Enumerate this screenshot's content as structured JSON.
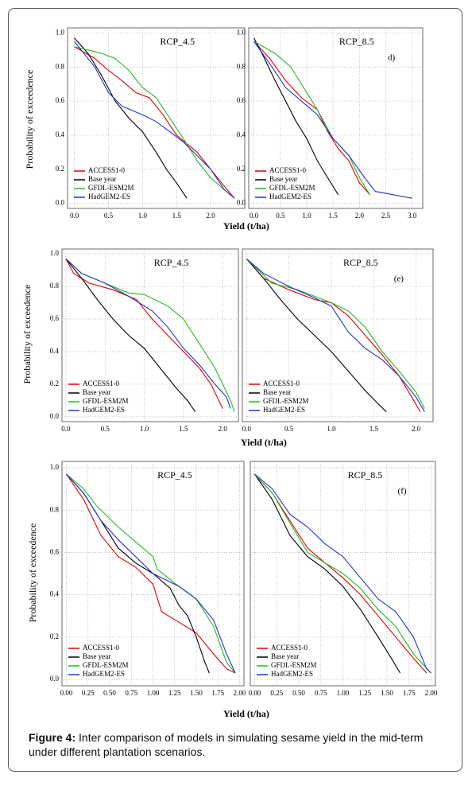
{
  "chart_data": [
    {
      "type": "line",
      "title": "RCP_4.5",
      "ylabel": "Probability of exceedence",
      "xlabel": "Yield (t/ha)",
      "legend": "lower left",
      "grid": true,
      "xlim": [
        -0.1,
        2.5
      ],
      "ylim": [
        -0.03,
        1.03
      ],
      "xticks": [
        {
          "value": 0,
          "label": "0.0"
        },
        0.5,
        {
          "value": 1,
          "label": "1.0"
        },
        1.5,
        {
          "value": 2,
          "label": "2.0"
        }
      ],
      "yticks": [
        {
          "value": 0,
          "label": "0.0"
        },
        0.2,
        0.4,
        0.6,
        0.8,
        {
          "value": 1,
          "label": "1.0"
        }
      ],
      "series": [
        {
          "name": "ACCESS1-0",
          "color": "#e00000",
          "x": [
            0,
            0.3,
            0.5,
            0.7,
            0.9,
            1.1,
            1.3,
            1.5,
            1.8,
            2.0,
            2.2,
            2.35
          ],
          "values": [
            0.92,
            0.85,
            0.78,
            0.72,
            0.65,
            0.62,
            0.52,
            0.4,
            0.3,
            0.2,
            0.1,
            0.03
          ]
        },
        {
          "name": "Base year",
          "color": "#000000",
          "x": [
            0,
            0.2,
            0.4,
            0.6,
            0.8,
            1.0,
            1.2,
            1.35,
            1.5,
            1.65
          ],
          "values": [
            0.97,
            0.88,
            0.75,
            0.6,
            0.5,
            0.42,
            0.3,
            0.2,
            0.12,
            0.03
          ]
        },
        {
          "name": "GFDL-ESM2M",
          "color": "#22bb22",
          "x": [
            0,
            0.4,
            0.6,
            0.8,
            1.0,
            1.2,
            1.4,
            1.6,
            1.8,
            2.0,
            2.2,
            2.35
          ],
          "values": [
            0.92,
            0.88,
            0.85,
            0.78,
            0.68,
            0.62,
            0.5,
            0.38,
            0.25,
            0.15,
            0.08,
            0.03
          ]
        },
        {
          "name": "HadGEM2-ES",
          "color": "#2233cc",
          "x": [
            0,
            0.3,
            0.5,
            0.7,
            1.0,
            1.2,
            1.4,
            1.6,
            1.8,
            2.0,
            2.2,
            2.35
          ],
          "values": [
            0.95,
            0.8,
            0.65,
            0.57,
            0.52,
            0.48,
            0.42,
            0.36,
            0.28,
            0.2,
            0.08,
            0.03
          ]
        }
      ]
    },
    {
      "type": "line",
      "title": "RCP_8.5",
      "annotation": "d)",
      "legend": "lower left",
      "grid": true,
      "xlim": [
        -0.1,
        3.2
      ],
      "ylim": [
        -0.03,
        1.03
      ],
      "xticks": [
        {
          "value": 0,
          "label": "0.0"
        },
        0.5,
        {
          "value": 1,
          "label": "1.0"
        },
        1.5,
        {
          "value": 2,
          "label": "2.0"
        },
        2.5,
        {
          "value": 3,
          "label": "3.0"
        }
      ],
      "yticks": [
        {
          "value": 0,
          "label": "0.0"
        },
        0.2,
        0.4,
        0.6,
        0.8,
        {
          "value": 1,
          "label": "1.0"
        }
      ],
      "series": [
        {
          "name": "ACCESS1-0",
          "color": "#e00000",
          "x": [
            0,
            0.3,
            0.6,
            0.9,
            1.2,
            1.4,
            1.6,
            1.8,
            2.0,
            2.2
          ],
          "values": [
            0.95,
            0.85,
            0.72,
            0.62,
            0.55,
            0.42,
            0.32,
            0.25,
            0.12,
            0.05
          ]
        },
        {
          "name": "Base year",
          "color": "#000000",
          "x": [
            0,
            0.2,
            0.4,
            0.6,
            0.8,
            1.0,
            1.2,
            1.4,
            1.6
          ],
          "values": [
            0.97,
            0.85,
            0.72,
            0.6,
            0.48,
            0.38,
            0.25,
            0.15,
            0.05
          ]
        },
        {
          "name": "GFDL-ESM2M",
          "color": "#22bb22",
          "x": [
            0,
            0.4,
            0.7,
            1.0,
            1.2,
            1.5,
            1.8,
            2.0,
            2.2
          ],
          "values": [
            0.95,
            0.88,
            0.8,
            0.65,
            0.55,
            0.38,
            0.28,
            0.15,
            0.05
          ]
        },
        {
          "name": "HadGEM2-ES",
          "color": "#2233cc",
          "x": [
            0,
            0.3,
            0.6,
            0.9,
            1.2,
            1.5,
            1.8,
            2.1,
            2.3,
            3.0
          ],
          "values": [
            0.95,
            0.82,
            0.68,
            0.6,
            0.52,
            0.38,
            0.28,
            0.15,
            0.07,
            0.03
          ]
        }
      ]
    },
    {
      "type": "line",
      "title": "RCP_4.5",
      "ylabel": "Probability of exceedence",
      "xlabel": "Yield (t/ha)",
      "legend": "lower left",
      "grid": true,
      "xlim": [
        -0.05,
        2.2
      ],
      "ylim": [
        -0.03,
        1.03
      ],
      "xticks": [
        {
          "value": 0,
          "label": "0.0"
        },
        0.5,
        {
          "value": 1,
          "label": "1.0"
        },
        1.5,
        {
          "value": 2,
          "label": "2.0"
        }
      ],
      "yticks": [
        {
          "value": 0,
          "label": "0.0"
        },
        0.2,
        0.4,
        0.6,
        0.8,
        {
          "value": 1,
          "label": "1.0"
        }
      ],
      "series": [
        {
          "name": "ACCESS1-0",
          "color": "#e00000",
          "x": [
            0,
            0.1,
            0.3,
            0.6,
            0.9,
            1.1,
            1.3,
            1.5,
            1.7,
            1.85,
            1.95,
            2.0
          ],
          "values": [
            0.97,
            0.88,
            0.82,
            0.78,
            0.72,
            0.6,
            0.5,
            0.4,
            0.3,
            0.2,
            0.1,
            0.05
          ]
        },
        {
          "name": "Base year",
          "color": "#000000",
          "x": [
            0,
            0.2,
            0.4,
            0.6,
            0.8,
            1.0,
            1.2,
            1.4,
            1.55,
            1.65
          ],
          "values": [
            0.97,
            0.85,
            0.72,
            0.6,
            0.5,
            0.42,
            0.3,
            0.18,
            0.1,
            0.03
          ]
        },
        {
          "name": "GFDL-ESM2M",
          "color": "#22bb22",
          "x": [
            0,
            0.2,
            0.5,
            0.8,
            1.0,
            1.3,
            1.5,
            1.7,
            1.9,
            2.0,
            2.1,
            2.15
          ],
          "values": [
            0.97,
            0.88,
            0.82,
            0.76,
            0.75,
            0.68,
            0.6,
            0.45,
            0.3,
            0.2,
            0.1,
            0.03
          ]
        },
        {
          "name": "HadGEM2-ES",
          "color": "#2233cc",
          "x": [
            0,
            0.2,
            0.5,
            0.8,
            1.1,
            1.3,
            1.5,
            1.7,
            1.9,
            2.05,
            2.1
          ],
          "values": [
            0.97,
            0.88,
            0.82,
            0.74,
            0.65,
            0.55,
            0.42,
            0.32,
            0.2,
            0.12,
            0.05
          ]
        }
      ]
    },
    {
      "type": "line",
      "title": "RCP_8.5",
      "annotation": "(e)",
      "legend": "lower left",
      "grid": true,
      "xlim": [
        -0.05,
        2.2
      ],
      "ylim": [
        -0.03,
        1.03
      ],
      "xticks": [
        {
          "value": 0,
          "label": "0.0"
        },
        0.5,
        {
          "value": 1,
          "label": "1.0"
        },
        1.5,
        {
          "value": 2,
          "label": "2.0"
        }
      ],
      "series": [
        {
          "name": "ACCESS1-0",
          "color": "#e00000",
          "x": [
            0,
            0.2,
            0.5,
            0.8,
            1.0,
            1.2,
            1.4,
            1.6,
            1.8,
            1.95,
            2.05
          ],
          "values": [
            0.97,
            0.85,
            0.78,
            0.72,
            0.7,
            0.62,
            0.5,
            0.38,
            0.25,
            0.12,
            0.03
          ]
        },
        {
          "name": "Base year",
          "color": "#000000",
          "x": [
            0,
            0.2,
            0.4,
            0.6,
            0.8,
            1.0,
            1.2,
            1.4,
            1.55,
            1.65
          ],
          "values": [
            0.97,
            0.85,
            0.72,
            0.6,
            0.5,
            0.4,
            0.28,
            0.16,
            0.08,
            0.03
          ]
        },
        {
          "name": "GFDL-ESM2M",
          "color": "#22bb22",
          "x": [
            0,
            0.3,
            0.6,
            0.8,
            1.0,
            1.2,
            1.4,
            1.6,
            1.8,
            2.0,
            2.1
          ],
          "values": [
            0.97,
            0.82,
            0.78,
            0.74,
            0.7,
            0.65,
            0.55,
            0.4,
            0.28,
            0.15,
            0.05
          ]
        },
        {
          "name": "HadGEM2-ES",
          "color": "#2233cc",
          "x": [
            0,
            0.2,
            0.5,
            0.8,
            1.0,
            1.2,
            1.4,
            1.6,
            1.8,
            2.0,
            2.1
          ],
          "values": [
            0.97,
            0.88,
            0.8,
            0.73,
            0.68,
            0.52,
            0.42,
            0.35,
            0.25,
            0.12,
            0.03
          ]
        }
      ]
    },
    {
      "type": "line",
      "title": "RCP_4.5",
      "ylabel": "Probability of exceedence",
      "xlabel": "Yield (t/ha)",
      "legend": "lower left",
      "grid": true,
      "xlim": [
        -0.05,
        2.05
      ],
      "ylim": [
        -0.03,
        1.03
      ],
      "xticks": [
        {
          "value": 0,
          "label": "0.00"
        },
        0.25,
        {
          "value": 0.5,
          "label": "0.50"
        },
        0.75,
        {
          "value": 1,
          "label": "1.00"
        },
        1.25,
        {
          "value": 1.5,
          "label": "1.50"
        },
        1.75,
        {
          "value": 2,
          "label": "2.00"
        }
      ],
      "yticks": [
        {
          "value": 0,
          "label": "0.0"
        },
        0.2,
        0.4,
        0.6,
        0.8,
        {
          "value": 1,
          "label": "1.0"
        }
      ],
      "series": [
        {
          "name": "ACCESS1-0",
          "color": "#e00000",
          "x": [
            0,
            0.2,
            0.4,
            0.6,
            0.8,
            1.0,
            1.1,
            1.3,
            1.5,
            1.7,
            1.85,
            1.95
          ],
          "values": [
            0.97,
            0.85,
            0.68,
            0.58,
            0.53,
            0.45,
            0.32,
            0.27,
            0.22,
            0.12,
            0.05,
            0.03
          ]
        },
        {
          "name": "Base year",
          "color": "#000000",
          "x": [
            0,
            0.2,
            0.4,
            0.6,
            0.8,
            1.0,
            1.2,
            1.3,
            1.4,
            1.5,
            1.6,
            1.65
          ],
          "values": [
            0.97,
            0.88,
            0.75,
            0.62,
            0.55,
            0.5,
            0.43,
            0.35,
            0.3,
            0.2,
            0.08,
            0.03
          ]
        },
        {
          "name": "GFDL-ESM2M",
          "color": "#22bb22",
          "x": [
            0,
            0.2,
            0.35,
            0.6,
            0.8,
            1.0,
            1.05,
            1.3,
            1.5,
            1.7,
            1.85,
            1.95
          ],
          "values": [
            0.97,
            0.9,
            0.82,
            0.72,
            0.65,
            0.58,
            0.52,
            0.44,
            0.38,
            0.25,
            0.08,
            0.03
          ]
        },
        {
          "name": "HadGEM2-ES",
          "color": "#2233cc",
          "x": [
            0,
            0.2,
            0.4,
            0.6,
            0.8,
            1.0,
            1.3,
            1.5,
            1.7,
            1.85,
            1.95
          ],
          "values": [
            0.97,
            0.88,
            0.75,
            0.66,
            0.58,
            0.5,
            0.44,
            0.38,
            0.28,
            0.12,
            0.03
          ]
        }
      ]
    },
    {
      "type": "line",
      "title": "RCP_8.5",
      "annotation": "(f)",
      "legend": "lower left",
      "grid": true,
      "xlim": [
        -0.05,
        2.05
      ],
      "ylim": [
        -0.03,
        1.03
      ],
      "xticks": [
        {
          "value": 0,
          "label": "0.00"
        },
        0.25,
        {
          "value": 0.5,
          "label": "0.50"
        },
        0.75,
        {
          "value": 1,
          "label": "1.00"
        },
        1.25,
        {
          "value": 1.5,
          "label": "1.50"
        },
        1.75,
        {
          "value": 2,
          "label": "2.00"
        }
      ],
      "series": [
        {
          "name": "ACCESS1-0",
          "color": "#e00000",
          "x": [
            0,
            0.2,
            0.4,
            0.6,
            0.8,
            1.0,
            1.2,
            1.4,
            1.6,
            1.8,
            1.95
          ],
          "values": [
            0.97,
            0.88,
            0.75,
            0.62,
            0.55,
            0.48,
            0.4,
            0.3,
            0.2,
            0.1,
            0.03
          ]
        },
        {
          "name": "Base year",
          "color": "#000000",
          "x": [
            0,
            0.2,
            0.4,
            0.6,
            0.8,
            1.0,
            1.2,
            1.4,
            1.55,
            1.65
          ],
          "values": [
            0.97,
            0.85,
            0.68,
            0.58,
            0.52,
            0.44,
            0.33,
            0.2,
            0.1,
            0.03
          ]
        },
        {
          "name": "GFDL-ESM2M",
          "color": "#22bb22",
          "x": [
            0,
            0.2,
            0.4,
            0.6,
            0.8,
            1.0,
            1.2,
            1.4,
            1.6,
            1.8,
            2.0
          ],
          "values": [
            0.97,
            0.88,
            0.74,
            0.6,
            0.55,
            0.5,
            0.43,
            0.33,
            0.25,
            0.12,
            0.03
          ]
        },
        {
          "name": "HadGEM2-ES",
          "color": "#2233cc",
          "x": [
            0,
            0.2,
            0.4,
            0.6,
            0.8,
            1.0,
            1.2,
            1.4,
            1.6,
            1.8,
            1.95,
            2.0
          ],
          "values": [
            0.97,
            0.9,
            0.78,
            0.72,
            0.64,
            0.58,
            0.48,
            0.38,
            0.32,
            0.2,
            0.05,
            0.03
          ]
        }
      ]
    }
  ],
  "caption": {
    "label": "Figure 4:",
    "text": "Inter comparison of models in simulating sesame yield in the mid-term under different plantation scenarios."
  }
}
